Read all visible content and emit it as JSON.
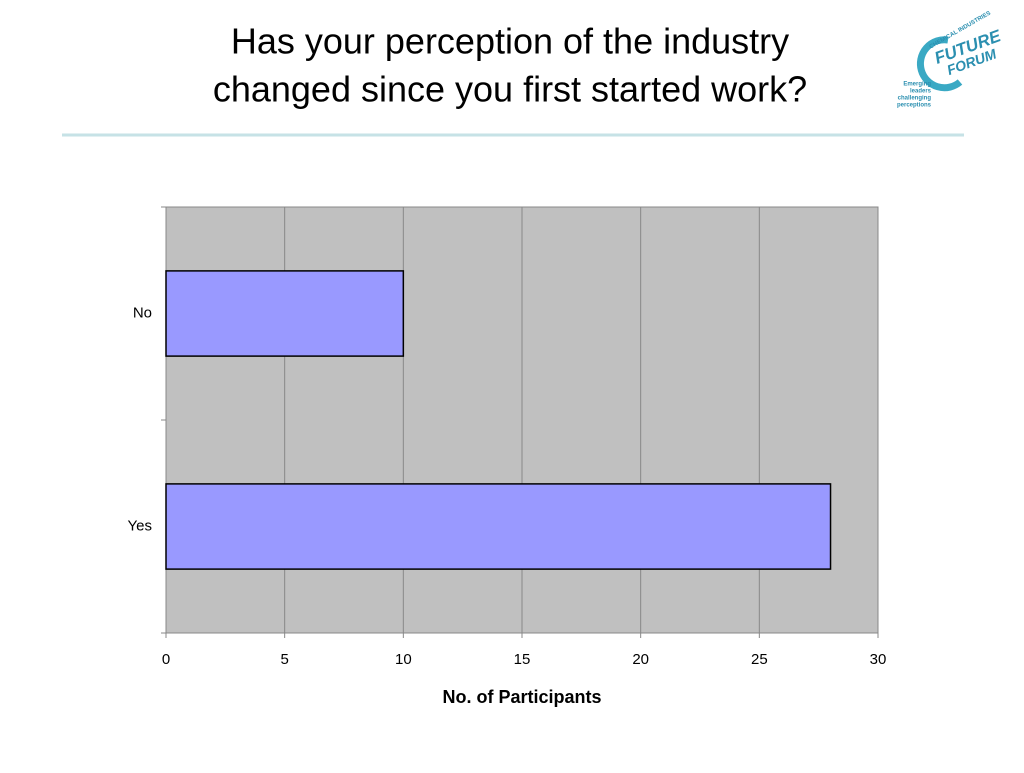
{
  "chart_data": {
    "type": "hbar",
    "title": [
      "Has your perception of the industry",
      "changed since you first started work?"
    ],
    "x_label": "No. of Participants",
    "categories": [
      "No",
      "Yes"
    ],
    "values": [
      10,
      28
    ],
    "color": "#9999ff",
    "xlim": [
      0,
      30
    ],
    "xticks": [
      0,
      5,
      10,
      15,
      20,
      25,
      30
    ],
    "grid": true
  },
  "logo": {
    "top": "CHEMICAL INDUSTRIES",
    "name": [
      "FUTURE",
      "FORUM"
    ],
    "tagline": [
      "Emerging",
      "leaders",
      "challenging",
      "perceptions"
    ]
  }
}
